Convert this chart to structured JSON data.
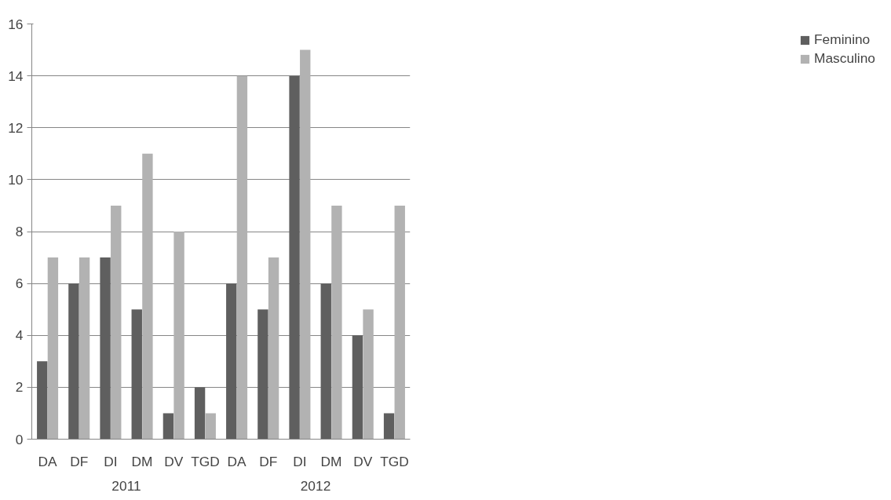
{
  "chart_data": {
    "type": "bar",
    "categories": [
      "DA",
      "DF",
      "DI",
      "DM",
      "DV",
      "TGD",
      "DA",
      "DF",
      "DI",
      "DM",
      "DV",
      "TGD"
    ],
    "annotations": [
      "2011",
      "2012"
    ],
    "series": [
      {
        "name": "Feminino",
        "color": "#5f5f5f",
        "values": [
          3,
          6,
          7,
          5,
          1,
          2,
          6,
          5,
          14,
          6,
          4,
          1
        ]
      },
      {
        "name": "Masculino",
        "color": "#b2b2b2",
        "values": [
          7,
          7,
          9,
          11,
          8,
          1,
          14,
          7,
          15,
          9,
          5,
          9
        ]
      }
    ],
    "ylim": [
      0,
      16
    ],
    "yticks": [
      0,
      2,
      4,
      6,
      8,
      10,
      12,
      14,
      16
    ],
    "grid": "y",
    "legend": "right"
  }
}
